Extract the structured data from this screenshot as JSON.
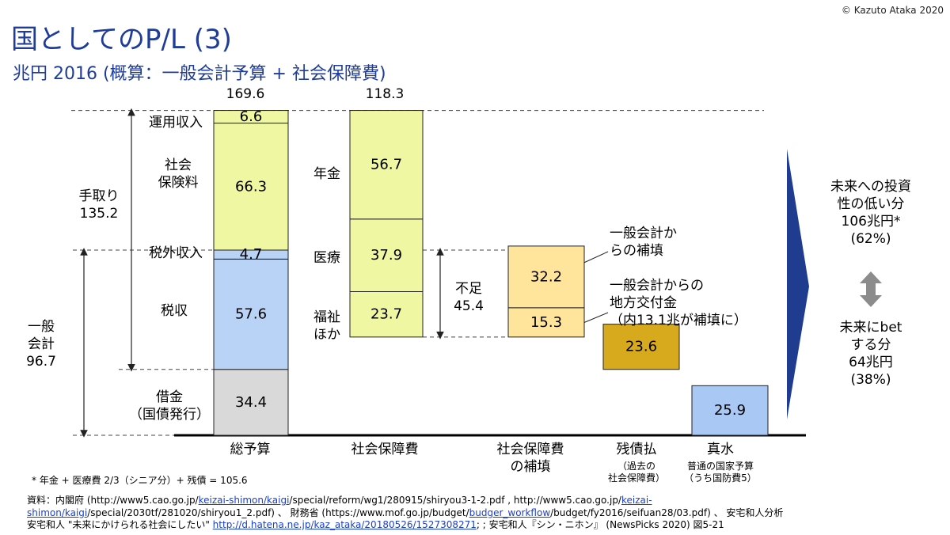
{
  "header": {
    "title": "国としてのP/L (3)",
    "subtitle": "兆円 2016 (概算：一般会計予算 + 社会保障費)",
    "copyright": "© Kazuto Ataka 2020"
  },
  "chart_data": {
    "type": "bar",
    "title": "国としてのP/L (3)",
    "unit": "兆円",
    "categories": [
      "総予算",
      "社会保障費",
      "社会保障費の補填",
      "残債払",
      "真水"
    ],
    "category_sub": {
      "residual": "（過去の\n社会保障費）",
      "pure": "普通の国家予算\n（うち国防費5）"
    },
    "totals": {
      "budget": "169.6",
      "social": "118.3"
    },
    "budget_stack": [
      {
        "name": "借金（国債発行）",
        "value": 34.4,
        "label": "34.4",
        "color": "#d9d9d9"
      },
      {
        "name": "税収",
        "value": 57.6,
        "label": "57.6",
        "color": "#b9d3f7"
      },
      {
        "name": "税外収入",
        "value": 4.7,
        "label": "4.7",
        "color": "#b9d3f7"
      },
      {
        "name": "社会保険料",
        "value": 66.3,
        "label": "66.3",
        "color": "#eff7a3"
      },
      {
        "name": "運用収入",
        "value": 6.6,
        "label": "6.6",
        "color": "#eff7a3"
      }
    ],
    "social_stack": [
      {
        "name": "福祉ほか",
        "value": 23.7,
        "label": "23.7",
        "color": "#eff7a3"
      },
      {
        "name": "医療",
        "value": 37.9,
        "label": "37.9",
        "color": "#eff7a3"
      },
      {
        "name": "年金",
        "value": 56.7,
        "label": "56.7",
        "color": "#eff7a3"
      }
    ],
    "social_base": 0,
    "subsidy_stack": [
      {
        "name": "一般会計からの地方交付金",
        "value": 15.3,
        "label": "15.3",
        "color": "#ffe49c"
      },
      {
        "name": "一般会計からの補填",
        "value": 32.2,
        "label": "32.2",
        "color": "#ffe49c"
      }
    ],
    "residual": {
      "value": 23.6,
      "label": "23.6",
      "color": "#d7a91d"
    },
    "pure": {
      "value": 25.9,
      "label": "25.9",
      "color": "#a9c8f4"
    }
  },
  "labels": {
    "unyo": "運用収入",
    "shakai_hokenryo": "社会\n保険料",
    "zeigai": "税外収入",
    "zeishu": "税収",
    "shakkin": "借金\n（国債発行）",
    "tedori": "手取り\n135.2",
    "ippan": "一般\n会計\n96.7",
    "nenkin": "年金",
    "iryo": "医療",
    "fukushi": "福祉\nほか",
    "fusoku": "不足\n45.4",
    "hoten_note": "一般会計か\nらの補填",
    "kofu_note": "一般会計からの\n地方交付金\n（内13.1兆が補填に）",
    "future_low": "未来への投資\n性の低い分\n106兆円*\n(62%)",
    "future_bet": "未来にbet\nする分\n64兆円\n(38%)"
  },
  "footnotes": {
    "note": "* 年金 + 医療費 2/3（シニア分）+ 残債 = 105.6",
    "source1a": "資料：内閣府 (http://www5.cao.go.jp/",
    "source1b": "keizai-shimon/kaigi",
    "source1c": "/special/reform/wg1/280915/shiryou3-1-2.pdf , http://www5.cao.go.jp/",
    "source1d": "keizai-",
    "source2a": "shimon/kaigi",
    "source2b": "/special/2030tf/281020/shiryou1_2.pdf) 、 財務省 (https://www.mof.go.jp/budget/",
    "source2c": "budger_workflow",
    "source2d": "/budget/fy2016/seifuan28/03.pdf) 、 安宅和人分析",
    "source3a": "安宅和人 \"未来にかけられる社会にしたい\" ",
    "source3b": "http://d.hatena.ne.jp/kaz_ataka/20180526/1527308271",
    "source3c": "; ; 安宅和人『シン・ニホン』 (NewsPicks 2020) 図5-21"
  }
}
